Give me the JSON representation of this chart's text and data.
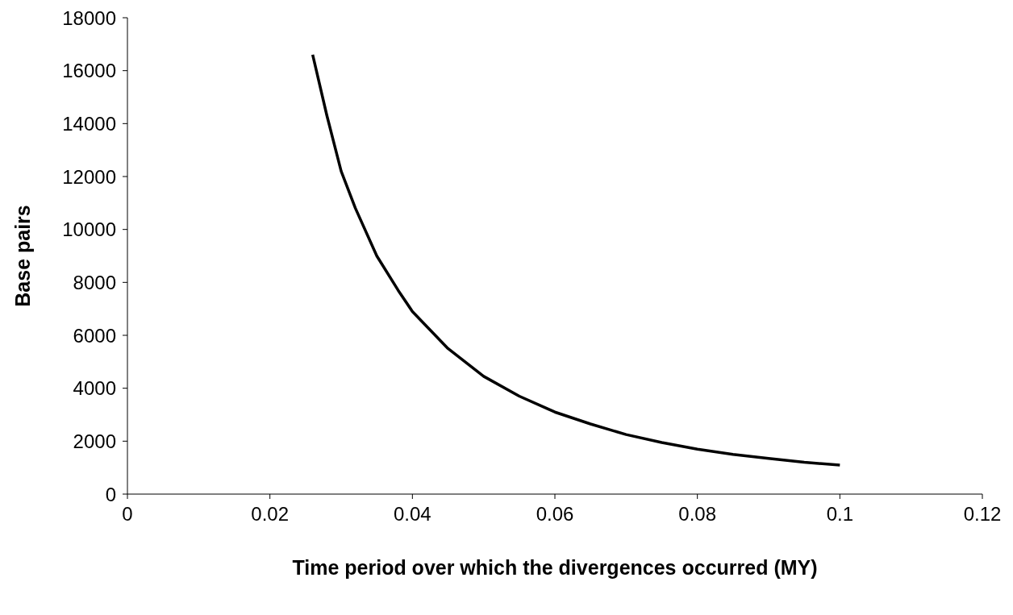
{
  "chart_data": {
    "type": "line",
    "xlabel": "Time period over which the divergences occurred (MY)",
    "ylabel": "Base pairs",
    "series": [
      {
        "color": "#000000",
        "x": [
          0.026,
          0.028,
          0.03,
          0.032,
          0.035,
          0.038,
          0.04,
          0.045,
          0.05,
          0.055,
          0.06,
          0.065,
          0.07,
          0.075,
          0.08,
          0.085,
          0.09,
          0.095,
          0.1
        ],
        "values": [
          16600,
          14300,
          12200,
          10800,
          9000,
          7700,
          6900,
          5500,
          4450,
          3700,
          3100,
          2650,
          2250,
          1950,
          1700,
          1500,
          1350,
          1200,
          1100
        ]
      }
    ],
    "xlim": [
      0,
      0.12
    ],
    "xticks": [
      0,
      0.02,
      0.04,
      0.06,
      0.08,
      0.1,
      0.12
    ],
    "ylim": [
      0,
      18000
    ],
    "yticks": [
      0,
      2000,
      4000,
      6000,
      8000,
      10000,
      12000,
      14000,
      16000,
      18000
    ],
    "grid": false,
    "legend": false,
    "marker": "none",
    "line_style": "solid"
  }
}
